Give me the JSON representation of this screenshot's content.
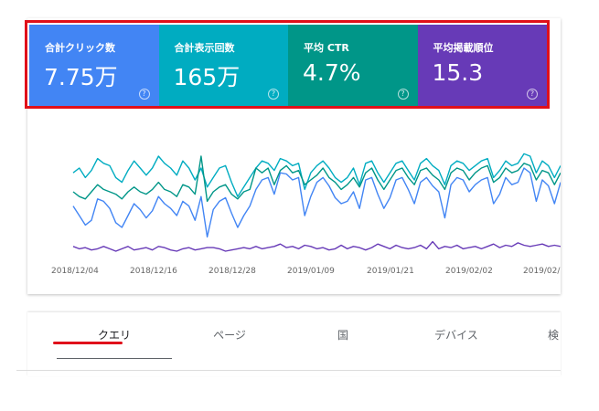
{
  "metrics": [
    {
      "label": "合計クリック数",
      "value": "7.75万",
      "color": "#4285f4"
    },
    {
      "label": "合計表示回数",
      "value": "165万",
      "color": "#00acc1"
    },
    {
      "label": "平均 CTR",
      "value": "4.7%",
      "color": "#009688"
    },
    {
      "label": "平均掲載順位",
      "value": "15.3",
      "color": "#673ab7"
    }
  ],
  "help_glyph": "?",
  "chart_data": {
    "type": "line",
    "x_tick_labels": [
      "2018/12/04",
      "2018/12/16",
      "2018/12/28",
      "2019/01/09",
      "2019/01/21",
      "2019/02/02",
      "2019/02/"
    ],
    "grid": false,
    "series": [
      {
        "color": "#4285f4",
        "values": [
          0.38,
          0.3,
          0.22,
          0.26,
          0.44,
          0.42,
          0.36,
          0.24,
          0.2,
          0.3,
          0.4,
          0.35,
          0.28,
          0.34,
          0.46,
          0.4,
          0.36,
          0.3,
          0.42,
          0.38,
          0.26,
          0.46,
          0.12,
          0.35,
          0.42,
          0.45,
          0.32,
          0.2,
          0.3,
          0.38,
          0.52,
          0.6,
          0.62,
          0.48,
          0.66,
          0.65,
          0.6,
          0.62,
          0.3,
          0.46,
          0.58,
          0.62,
          0.55,
          0.45,
          0.4,
          0.42,
          0.5,
          0.36,
          0.6,
          0.62,
          0.48,
          0.36,
          0.45,
          0.6,
          0.62,
          0.52,
          0.4,
          0.58,
          0.62,
          0.55,
          0.5,
          0.28,
          0.56,
          0.62,
          0.6,
          0.5,
          0.56,
          0.6,
          0.62,
          0.4,
          0.48,
          0.62,
          0.56,
          0.58,
          0.7,
          0.66,
          0.42,
          0.6,
          0.55,
          0.4,
          0.58
        ]
      },
      {
        "color": "#00acc1",
        "values": [
          0.66,
          0.7,
          0.62,
          0.68,
          0.78,
          0.74,
          0.72,
          0.62,
          0.58,
          0.68,
          0.76,
          0.7,
          0.64,
          0.7,
          0.8,
          0.74,
          0.7,
          0.64,
          0.76,
          0.7,
          0.6,
          0.7,
          0.54,
          0.62,
          0.7,
          0.72,
          0.58,
          0.46,
          0.54,
          0.62,
          0.7,
          0.76,
          0.74,
          0.68,
          0.78,
          0.76,
          0.72,
          0.74,
          0.52,
          0.66,
          0.72,
          0.76,
          0.7,
          0.62,
          0.58,
          0.62,
          0.7,
          0.56,
          0.74,
          0.76,
          0.66,
          0.58,
          0.66,
          0.74,
          0.76,
          0.68,
          0.6,
          0.74,
          0.78,
          0.72,
          0.68,
          0.56,
          0.72,
          0.76,
          0.74,
          0.68,
          0.72,
          0.76,
          0.78,
          0.62,
          0.68,
          0.76,
          0.72,
          0.74,
          0.82,
          0.8,
          0.66,
          0.76,
          0.72,
          0.62,
          0.72
        ]
      },
      {
        "color": "#009688",
        "values": [
          0.5,
          0.46,
          0.44,
          0.5,
          0.56,
          0.52,
          0.5,
          0.48,
          0.44,
          0.5,
          0.54,
          0.5,
          0.48,
          0.52,
          0.58,
          0.52,
          0.5,
          0.46,
          0.56,
          0.54,
          0.48,
          0.8,
          0.42,
          0.5,
          0.54,
          0.56,
          0.48,
          0.44,
          0.5,
          0.52,
          0.7,
          0.66,
          0.7,
          0.56,
          0.68,
          0.72,
          0.66,
          0.68,
          0.56,
          0.6,
          0.64,
          0.7,
          0.62,
          0.58,
          0.52,
          0.56,
          0.62,
          0.54,
          0.66,
          0.7,
          0.6,
          0.52,
          0.6,
          0.68,
          0.7,
          0.62,
          0.56,
          0.68,
          0.7,
          0.64,
          0.6,
          0.52,
          0.66,
          0.7,
          0.68,
          0.6,
          0.66,
          0.7,
          0.72,
          0.58,
          0.62,
          0.7,
          0.66,
          0.68,
          0.74,
          0.72,
          0.6,
          0.68,
          0.66,
          0.56,
          0.66
        ]
      },
      {
        "color": "#673ab7",
        "values": [
          0.04,
          0.02,
          0.03,
          0.01,
          0.02,
          0.04,
          0.02,
          0.0,
          0.02,
          0.04,
          0.01,
          0.02,
          0.03,
          0.01,
          0.04,
          0.03,
          0.01,
          0.0,
          0.02,
          0.03,
          0.01,
          0.02,
          0.03,
          0.03,
          0.02,
          0.0,
          0.01,
          0.02,
          0.03,
          0.02,
          0.04,
          0.02,
          0.03,
          0.04,
          0.06,
          0.03,
          0.04,
          0.02,
          0.05,
          0.04,
          0.02,
          0.03,
          0.01,
          0.02,
          0.05,
          0.02,
          0.04,
          0.03,
          0.01,
          0.03,
          0.06,
          0.04,
          0.02,
          0.05,
          0.03,
          0.02,
          0.03,
          0.05,
          0.02,
          0.08,
          0.02,
          0.04,
          0.03,
          0.05,
          0.02,
          0.03,
          0.04,
          0.02,
          0.04,
          0.06,
          0.03,
          0.05,
          0.04,
          0.07,
          0.05,
          0.04,
          0.05,
          0.06,
          0.04,
          0.05,
          0.04
        ]
      }
    ]
  },
  "tabs": [
    {
      "label": "クエリ",
      "active": true
    },
    {
      "label": "ページ",
      "active": false
    },
    {
      "label": "国",
      "active": false
    },
    {
      "label": "デバイス",
      "active": false
    },
    {
      "label": "検",
      "active": false
    }
  ]
}
